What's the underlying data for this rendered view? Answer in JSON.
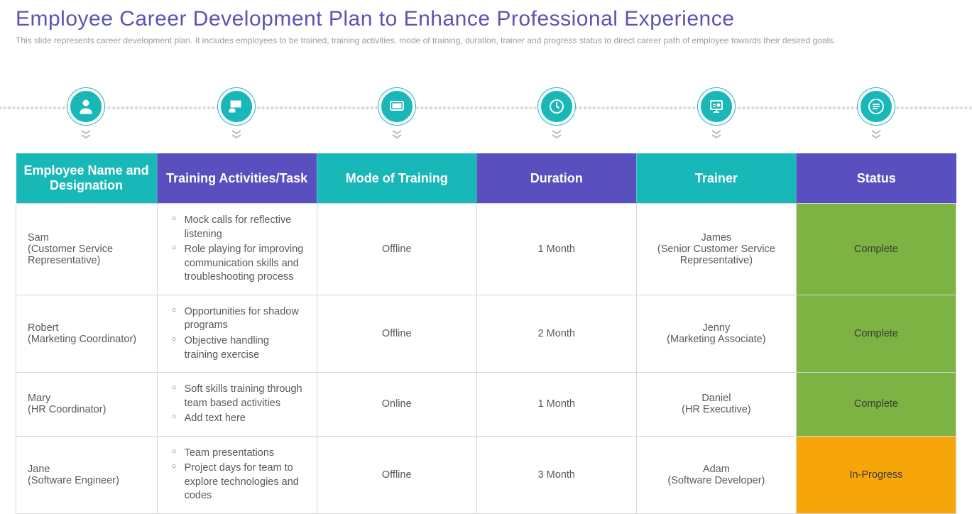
{
  "title": "Employee Career Development Plan to Enhance Professional Experience",
  "subtitle": "This slide represents career development plan. It includes employees to be trained, training activities, mode of training, duration, trainer and progress status to direct career path of employee towards their desired goals.",
  "colors": {
    "title": "#5b54b5",
    "subtitle": "#9c9c9c",
    "icon_bg": "#19b8b8",
    "header_alt_a": "#19b8b8",
    "header_alt_b": "#5a4fbf",
    "row_border": "#d7d7db",
    "status_complete_bg": "#7cb342",
    "status_inprogress_bg": "#f6a609",
    "chevron": "#bfbfbf"
  },
  "columns": [
    {
      "label": "Employee Name and Designation",
      "icon": "person",
      "width": "15%"
    },
    {
      "label": "Training Activities/Task",
      "icon": "training",
      "width": "17%"
    },
    {
      "label": "Mode of Training",
      "icon": "screen",
      "width": "17%"
    },
    {
      "label": "Duration",
      "icon": "clock",
      "width": "17%"
    },
    {
      "label": "Trainer",
      "icon": "board",
      "width": "17%"
    },
    {
      "label": "Status",
      "icon": "doc",
      "width": "17%"
    }
  ],
  "rows": [
    {
      "employee_name": "Sam",
      "employee_designation": "(Customer Service Representative)",
      "activities": [
        "Mock calls for reflective listening",
        "Role playing for improving communication skills and troubleshooting process"
      ],
      "mode": "Offline",
      "duration": "1 Month",
      "trainer_name": "James",
      "trainer_role": "(Senior Customer Service Representative)",
      "status": "Complete",
      "status_bg": "#7cb342"
    },
    {
      "employee_name": "Robert",
      "employee_designation": "(Marketing Coordinator)",
      "activities": [
        "Opportunities for shadow programs",
        "Objective handling training exercise"
      ],
      "mode": "Offline",
      "duration": "2 Month",
      "trainer_name": "Jenny",
      "trainer_role": "(Marketing Associate)",
      "status": "Complete",
      "status_bg": "#7cb342"
    },
    {
      "employee_name": "Mary",
      "employee_designation": "(HR Coordinator)",
      "activities": [
        "Soft skills training through team based activities",
        "Add text here"
      ],
      "mode": "Online",
      "duration": "1 Month",
      "trainer_name": "Daniel",
      "trainer_role": "(HR Executive)",
      "status": "Complete",
      "status_bg": "#7cb342"
    },
    {
      "employee_name": "Jane",
      "employee_designation": "(Software Engineer)",
      "activities": [
        "Team presentations",
        "Project days for team to explore technologies and codes"
      ],
      "mode": "Offline",
      "duration": "3 Month",
      "trainer_name": "Adam",
      "trainer_role": "(Software Developer)",
      "status": "In-Progress",
      "status_bg": "#f6a609"
    }
  ]
}
